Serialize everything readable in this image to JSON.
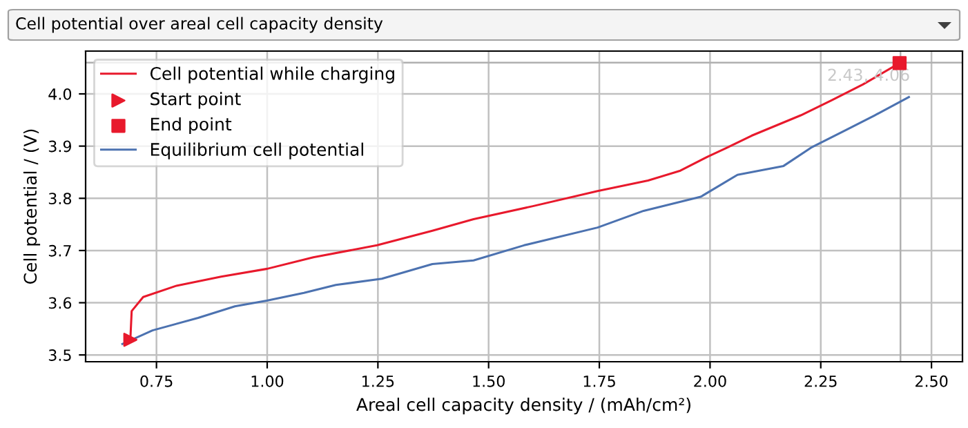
{
  "chart_data": {
    "type": "line",
    "title": "Cell potential over areal cell capacity density",
    "xlabel": "Areal cell capacity density / (mAh/cm²)",
    "ylabel": "Cell potential / (V)",
    "xlim": [
      0.59,
      2.57
    ],
    "ylim": [
      3.487,
      4.082
    ],
    "xticks": [
      {
        "value": 0.75,
        "label": "0.75"
      },
      {
        "value": 1.0,
        "label": "1.00"
      },
      {
        "value": 1.25,
        "label": "1.25"
      },
      {
        "value": 1.5,
        "label": "1.50"
      },
      {
        "value": 1.75,
        "label": "1.75"
      },
      {
        "value": 2.0,
        "label": "2.00"
      },
      {
        "value": 2.25,
        "label": "2.25"
      },
      {
        "value": 2.5,
        "label": "2.50"
      }
    ],
    "yticks": [
      3.5,
      3.6,
      3.7,
      3.8,
      3.9,
      {
        "value": 4.0,
        "label": "4.0"
      }
    ],
    "grid": true,
    "legend": "top left",
    "line_style": "solid",
    "series": [
      {
        "name": "Cell potential while charging",
        "color": "#e8192c",
        "x": [
          0.691,
          0.694,
          0.72,
          0.793,
          0.896,
          1.0,
          1.104,
          1.248,
          1.373,
          1.466,
          1.6,
          1.746,
          1.86,
          1.933,
          1.995,
          2.036,
          2.094,
          2.205,
          2.275,
          2.345,
          2.428
        ],
        "values": [
          3.529,
          3.584,
          3.611,
          3.632,
          3.65,
          3.665,
          3.687,
          3.71,
          3.738,
          3.76,
          3.785,
          3.814,
          3.834,
          3.853,
          3.88,
          3.896,
          3.92,
          3.959,
          3.988,
          4.018,
          4.059
        ]
      },
      {
        "name": "Start point",
        "color": "#e8192c",
        "type": "scatter",
        "marker": "triangle",
        "x": [
          0.691
        ],
        "values": [
          3.529
        ]
      },
      {
        "name": "End point",
        "color": "#e8192c",
        "type": "scatter",
        "marker": "square",
        "x": [
          2.428
        ],
        "values": [
          4.059
        ]
      },
      {
        "name": "Equilibrium cell potential",
        "color": "#4c72b0",
        "x": [
          0.673,
          0.741,
          0.844,
          0.927,
          0.999,
          1.083,
          1.155,
          1.259,
          1.373,
          1.466,
          1.58,
          1.746,
          1.85,
          1.979,
          2.062,
          2.166,
          2.228,
          2.303,
          2.372,
          2.449
        ],
        "values": [
          3.521,
          3.547,
          3.571,
          3.593,
          3.604,
          3.619,
          3.634,
          3.646,
          3.674,
          3.681,
          3.71,
          3.744,
          3.776,
          3.803,
          3.845,
          3.862,
          3.897,
          3.929,
          3.959,
          3.994
        ]
      }
    ],
    "ref_lines": [
      {
        "axis": "x",
        "value": 2.43,
        "color": "#b0b0b0"
      },
      {
        "axis": "y",
        "value": 4.06,
        "color": "#b0b0b0"
      }
    ],
    "annotations": [
      {
        "text": "2.43, 4.06",
        "x": 2.43,
        "y": 4.06
      }
    ]
  }
}
